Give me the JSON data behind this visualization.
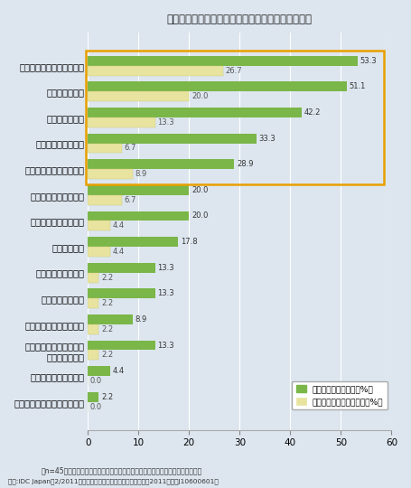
{
  "title": "外部ストレージ仮想化の導入で効果が得られた項目",
  "categories": [
    "異機種ストレージの統合管理",
    "ダウンタイムの最小化",
    "サーバー仮想化環境での\n運用管理の向上",
    "階層型ストレージの構築",
    "災害対策の高度化",
    "データ移行の容易化",
    "拡張性の向上",
    "信頼性／可用性の向上",
    "柔軟な構成変更の実現",
    "運用／管理コストの削減",
    "運用／管理の効率化",
    "容量の有効利用",
    "資産の有効利用",
    "ハードウェアコストの削減"
  ],
  "green_values": [
    2.2,
    4.4,
    13.3,
    8.9,
    13.3,
    13.3,
    17.8,
    20.0,
    20.0,
    28.9,
    33.3,
    42.2,
    51.1,
    53.3
  ],
  "yellow_values": [
    0.0,
    0.0,
    2.2,
    2.2,
    2.2,
    2.2,
    4.4,
    4.4,
    6.7,
    8.9,
    6.7,
    13.3,
    20.0,
    26.7
  ],
  "green_color": "#7ab648",
  "yellow_color": "#e8e4a0",
  "bg_color": "#dde6ef",
  "box_color": "#e8a000",
  "xlim": [
    0,
    60
  ],
  "xticks": [
    0,
    10,
    20,
    30,
    40,
    50,
    60
  ],
  "footnote": "（n=45　効果が得られた項目は複数回答、最も効果が得られた項目は単一回答）",
  "source": "出典:IDC Japan　2/2011　国内企業のストレージ利用実態調査　2011年版（J10600601）",
  "legend_green": "効果が得られた項目（%）",
  "legend_yellow": "最も効果が得られた項目（%）",
  "highlight_count": 5
}
